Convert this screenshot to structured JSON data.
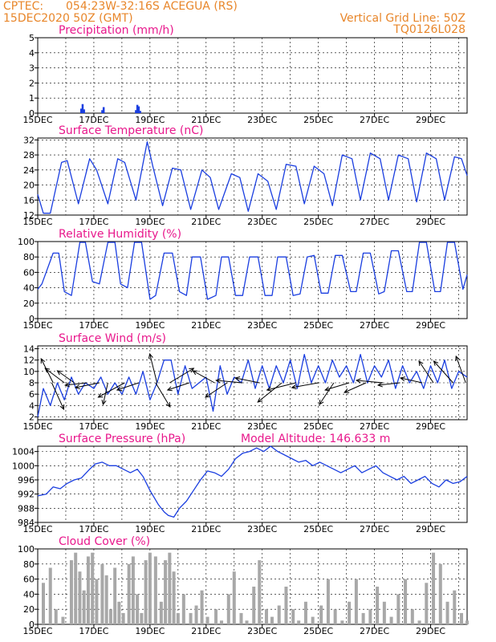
{
  "header": {
    "source": "CPTEC:",
    "location": "054:23W-32:16S   ACEGUA (RS)",
    "datetime": "15DEC2020 50Z (GMT)",
    "grid_note": "Vertical Grid Line: 50Z",
    "code": "TQ0126L028"
  },
  "colors": {
    "header": "#e8862a",
    "panel_title": "#e8188c",
    "series": "#1a3ee0",
    "cloud_bars": "#a8a8a8"
  },
  "x_tick_labels": [
    "15DEC",
    "17DEC",
    "19DEC",
    "21DEC",
    "23DEC",
    "25DEC",
    "27DEC",
    "29DEC"
  ],
  "chart_data": [
    {
      "id": "precip",
      "type": "bar",
      "title": "Precipitation (mm/h)",
      "ylim": [
        0,
        5
      ],
      "yticks": [
        0,
        1,
        2,
        3,
        4,
        5
      ],
      "series": [
        {
          "x": [
            1.55,
            1.6,
            1.65,
            2.3,
            2.35,
            3.5,
            3.55,
            3.6,
            3.65
          ],
          "values": [
            0.3,
            0.6,
            0.25,
            0.2,
            0.4,
            0.2,
            0.55,
            0.45,
            0.15
          ]
        }
      ]
    },
    {
      "id": "temp",
      "type": "line",
      "title": "Surface Temperature (nC)",
      "ylim": [
        12,
        32.5
      ],
      "yticks": [
        12,
        16,
        20,
        24,
        28,
        32
      ],
      "series": [
        {
          "x": [
            0,
            0.2,
            0.45,
            0.85,
            1.05,
            1.45,
            1.85,
            2.1,
            2.5,
            2.85,
            3.1,
            3.5,
            3.9,
            4.1,
            4.45,
            4.8,
            5.1,
            5.45,
            5.85,
            6.15,
            6.45,
            6.9,
            7.2,
            7.5,
            7.85,
            8.2,
            8.5,
            8.85,
            9.2,
            9.5,
            9.85,
            10.2,
            10.5,
            10.85,
            11.2,
            11.5,
            11.85,
            12.2,
            12.5,
            12.85,
            13.2,
            13.5,
            13.85,
            14.2,
            14.5,
            14.85,
            15.1,
            15.3
          ],
          "values": [
            17.5,
            12.5,
            12.5,
            26,
            26.5,
            15,
            27,
            24,
            15,
            27,
            26,
            16,
            31.5,
            25,
            14.5,
            24.5,
            24,
            13.5,
            24,
            22,
            13.5,
            23,
            22,
            13,
            23,
            21,
            13.5,
            25.5,
            25,
            15,
            25,
            23,
            14.5,
            28,
            27,
            16,
            28.5,
            27,
            16,
            28,
            27,
            15.5,
            28.5,
            27,
            16,
            27.5,
            27,
            22.5
          ]
        }
      ]
    },
    {
      "id": "rh",
      "type": "line",
      "title": "Relative Humidity (%)",
      "ylim": [
        0,
        100
      ],
      "yticks": [
        0,
        20,
        40,
        60,
        80,
        100
      ],
      "series": [
        {
          "x": [
            0,
            0.15,
            0.55,
            0.75,
            0.95,
            1.2,
            1.5,
            1.7,
            1.95,
            2.2,
            2.5,
            2.75,
            2.95,
            3.2,
            3.45,
            3.7,
            4.0,
            4.2,
            4.5,
            4.8,
            5.05,
            5.3,
            5.5,
            5.8,
            6.05,
            6.35,
            6.55,
            6.8,
            7.05,
            7.3,
            7.55,
            7.85,
            8.1,
            8.35,
            8.55,
            8.85,
            9.1,
            9.35,
            9.6,
            9.85,
            10.1,
            10.35,
            10.6,
            10.85,
            11.15,
            11.35,
            11.6,
            11.85,
            12.15,
            12.35,
            12.6,
            12.85,
            13.15,
            13.35,
            13.6,
            13.85,
            14.15,
            14.35,
            14.6,
            14.85,
            15.15,
            15.3
          ],
          "values": [
            38,
            45,
            85,
            85,
            35,
            30,
            99,
            99,
            48,
            45,
            99,
            99,
            45,
            40,
            99,
            99,
            25,
            30,
            85,
            85,
            35,
            30,
            80,
            80,
            25,
            30,
            80,
            80,
            30,
            30,
            80,
            80,
            30,
            30,
            80,
            80,
            30,
            32,
            80,
            82,
            33,
            33,
            82,
            82,
            35,
            35,
            85,
            85,
            32,
            35,
            88,
            88,
            35,
            35,
            99,
            99,
            35,
            35,
            99,
            99,
            38,
            57
          ]
        }
      ]
    },
    {
      "id": "wind",
      "type": "line",
      "title": "Surface Wind (m/s)",
      "ylim": [
        1.5,
        14.5
      ],
      "yticks": [
        2,
        4,
        6,
        8,
        10,
        12,
        14
      ],
      "series": [
        {
          "x": [
            0,
            0.2,
            0.45,
            0.7,
            0.95,
            1.2,
            1.45,
            1.7,
            2.0,
            2.25,
            2.5,
            2.75,
            3.0,
            3.25,
            3.5,
            3.75,
            4.0,
            4.25,
            4.5,
            4.75,
            5.0,
            5.25,
            5.5,
            5.75,
            6.0,
            6.25,
            6.5,
            6.75,
            7.0,
            7.25,
            7.5,
            7.75,
            8.0,
            8.25,
            8.5,
            8.75,
            9.0,
            9.25,
            9.5,
            9.75,
            10.0,
            10.25,
            10.5,
            10.75,
            11.0,
            11.25,
            11.5,
            11.75,
            12.0,
            12.25,
            12.5,
            12.75,
            13.0,
            13.25,
            13.5,
            13.75,
            14.0,
            14.25,
            14.5,
            14.75,
            15.0,
            15.3
          ],
          "values": [
            2,
            7,
            4,
            8,
            5,
            9,
            6,
            8,
            7,
            9,
            6,
            8,
            6,
            9,
            6,
            10,
            5,
            8,
            12,
            12,
            6,
            11,
            7,
            8,
            9,
            3,
            11,
            6,
            9,
            8,
            12,
            7,
            11,
            7,
            11,
            8,
            12,
            7,
            13,
            8,
            11,
            8,
            12,
            9,
            11,
            8,
            13,
            8,
            11,
            9,
            12,
            7,
            11,
            8,
            10,
            7,
            11,
            8,
            12,
            7,
            10,
            9
          ]
        }
      ],
      "vectors": [
        {
          "x": 0.5,
          "u": 0.25,
          "v": -0.55
        },
        {
          "x": 0.55,
          "u": -0.25,
          "v": 0.5
        },
        {
          "x": 0.95,
          "u": -0.4,
          "v": 0.3
        },
        {
          "x": 1.3,
          "u": -0.35,
          "v": 0.25
        },
        {
          "x": 1.75,
          "u": -0.45,
          "v": -0.05
        },
        {
          "x": 2.2,
          "u": -0.5,
          "v": -0.1
        },
        {
          "x": 2.5,
          "u": -0.1,
          "v": -0.45
        },
        {
          "x": 3.1,
          "u": -0.55,
          "v": -0.3
        },
        {
          "x": 3.6,
          "u": -0.45,
          "v": -0.15
        },
        {
          "x": 4.25,
          "u": -0.15,
          "v": 0.6
        },
        {
          "x": 4.2,
          "u": 0.3,
          "v": -0.5
        },
        {
          "x": 4.7,
          "u": 0.5,
          "v": 0.3
        },
        {
          "x": 5.4,
          "u": -0.45,
          "v": -0.15
        },
        {
          "x": 6.3,
          "u": -0.45,
          "v": 0.25
        },
        {
          "x": 6.75,
          "u": -0.45,
          "v": -0.3
        },
        {
          "x": 7.3,
          "u": -0.55,
          "v": 0.05
        },
        {
          "x": 7.9,
          "u": -0.5,
          "v": 0.1
        },
        {
          "x": 8.7,
          "u": -0.5,
          "v": -0.4
        },
        {
          "x": 9.2,
          "u": -0.6,
          "v": -0.15
        },
        {
          "x": 10.0,
          "u": -0.55,
          "v": -0.1
        },
        {
          "x": 10.55,
          "u": -0.3,
          "v": -0.45
        },
        {
          "x": 11.1,
          "u": -0.5,
          "v": -0.15
        },
        {
          "x": 11.7,
          "u": -0.45,
          "v": -0.2
        },
        {
          "x": 12.3,
          "u": -0.55,
          "v": 0.05
        },
        {
          "x": 12.9,
          "u": -0.45,
          "v": -0.05
        },
        {
          "x": 13.7,
          "u": -0.45,
          "v": 0.1
        },
        {
          "x": 14.1,
          "u": -0.3,
          "v": 0.45
        },
        {
          "x": 14.8,
          "u": -0.4,
          "v": 0.45
        },
        {
          "x": 15.25,
          "u": -0.2,
          "v": 0.55
        }
      ]
    },
    {
      "id": "pressure",
      "type": "line",
      "title": "Surface Pressure (hPa)",
      "annotation": "Model Altitude: 146.633 m",
      "ylim": [
        984,
        1005.5
      ],
      "yticks": [
        984,
        988,
        992,
        996,
        1000,
        1004
      ],
      "series": [
        {
          "x": [
            0,
            0.3,
            0.55,
            0.8,
            1.05,
            1.3,
            1.55,
            1.85,
            2.05,
            2.3,
            2.55,
            2.8,
            3.05,
            3.3,
            3.55,
            3.75,
            4.0,
            4.3,
            4.5,
            4.65,
            4.85,
            5.05,
            5.3,
            5.55,
            5.8,
            6.05,
            6.3,
            6.55,
            6.8,
            7.05,
            7.3,
            7.55,
            7.8,
            8.05,
            8.3,
            8.55,
            8.8,
            9.05,
            9.3,
            9.55,
            9.8,
            10.05,
            10.3,
            10.55,
            10.8,
            11.05,
            11.3,
            11.55,
            11.8,
            12.05,
            12.3,
            12.55,
            12.8,
            13.05,
            13.3,
            13.55,
            13.8,
            14.05,
            14.3,
            14.55,
            14.8,
            15.05,
            15.3
          ],
          "values": [
            991.5,
            992,
            994,
            993.5,
            995,
            996,
            996.5,
            999,
            1000.5,
            1001,
            1000,
            1000,
            999,
            998,
            999,
            997,
            993,
            989,
            987,
            986,
            985.5,
            988,
            990,
            993,
            996,
            998.5,
            998,
            997,
            999,
            1002,
            1003.5,
            1004,
            1005,
            1004,
            1005.5,
            1004,
            1003,
            1002,
            1001,
            1001.5,
            1000,
            1001,
            1000,
            999,
            998,
            999,
            1000,
            998,
            999,
            1000,
            998,
            997,
            996,
            997,
            995,
            996,
            997,
            995,
            994,
            996,
            995,
            995.5,
            997
          ]
        }
      ]
    },
    {
      "id": "cloud",
      "type": "bar",
      "title": "Cloud Cover (%)",
      "ylim": [
        0,
        100
      ],
      "yticks": [
        0,
        20,
        40,
        60,
        80,
        100
      ],
      "series": [
        {
          "x": [
            0,
            0.2,
            0.45,
            0.65,
            0.9,
            1.2,
            1.35,
            1.5,
            1.65,
            1.8,
            1.95,
            2.1,
            2.3,
            2.45,
            2.6,
            2.75,
            2.9,
            3.05,
            3.25,
            3.4,
            3.55,
            3.7,
            3.85,
            4.0,
            4.2,
            4.4,
            4.55,
            4.7,
            4.85,
            5.0,
            5.2,
            5.45,
            5.65,
            5.85,
            6.05,
            6.35,
            6.55,
            6.8,
            7.0,
            7.25,
            7.45,
            7.7,
            7.9,
            8.15,
            8.35,
            8.6,
            8.85,
            9.1,
            9.3,
            9.55,
            9.8,
            10.1,
            10.35,
            10.6,
            10.85,
            11.1,
            11.35,
            11.6,
            11.85,
            12.1,
            12.35,
            12.6,
            12.85,
            13.1,
            13.35,
            13.6,
            13.85,
            14.1,
            14.35,
            14.6,
            14.85,
            15.1,
            15.3
          ],
          "values": [
            0,
            55,
            75,
            20,
            10,
            85,
            95,
            70,
            45,
            90,
            95,
            60,
            80,
            65,
            20,
            75,
            30,
            15,
            80,
            90,
            40,
            15,
            85,
            95,
            90,
            30,
            85,
            95,
            70,
            15,
            40,
            15,
            25,
            45,
            10,
            20,
            5,
            40,
            70,
            15,
            5,
            50,
            85,
            20,
            10,
            25,
            50,
            20,
            5,
            30,
            10,
            25,
            60,
            20,
            5,
            30,
            60,
            15,
            20,
            50,
            30,
            10,
            40,
            60,
            20,
            5,
            55,
            95,
            80,
            30,
            45,
            15,
            5
          ]
        }
      ]
    }
  ]
}
